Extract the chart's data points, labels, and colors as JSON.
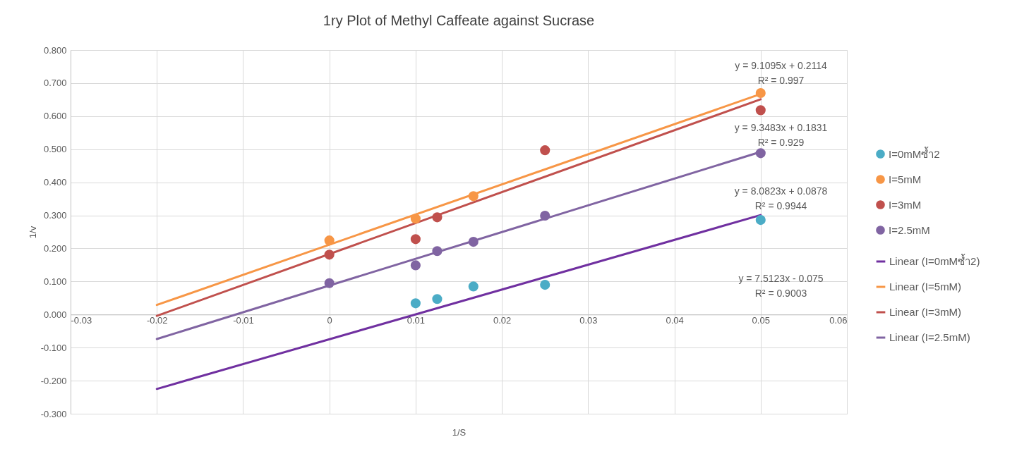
{
  "chart_data": {
    "type": "scatter",
    "title": "1ry Plot of  Methyl Caffeate against Sucrase",
    "xlabel": "1/S",
    "ylabel": "1/v",
    "xlim": [
      -0.03,
      0.06
    ],
    "xticks": [
      -0.03,
      -0.02,
      -0.01,
      0,
      0.01,
      0.02,
      0.03,
      0.04,
      0.05,
      0.06
    ],
    "ylim": [
      -0.3,
      0.8
    ],
    "yticks": [
      {
        "value": -0.3,
        "label": "-0.300"
      },
      {
        "value": -0.2,
        "label": "-0.200"
      },
      {
        "value": -0.1,
        "label": "-0.100"
      },
      {
        "value": 0,
        "label": "0.000"
      },
      {
        "value": 0.1,
        "label": "0.100"
      },
      {
        "value": 0.2,
        "label": "0.200"
      },
      {
        "value": 0.3,
        "label": "0.300"
      },
      {
        "value": 0.4,
        "label": "0.400"
      },
      {
        "value": 0.5,
        "label": "0.500"
      },
      {
        "value": 0.6,
        "label": "0.600"
      },
      {
        "value": 0.7,
        "label": "0.700"
      },
      {
        "value": 0.8,
        "label": "0.800"
      }
    ],
    "grid": true,
    "legend": "right",
    "series": [
      {
        "name": "I=0mMซ้ำ2",
        "color": "#4bacc6",
        "x": [
          0.01,
          0.0125,
          0.0167,
          0.025,
          0.05
        ],
        "values": [
          0.034,
          0.047,
          0.085,
          0.09,
          0.286
        ]
      },
      {
        "name": "I=5mM",
        "color": "#f79646",
        "x": [
          0,
          0.01,
          0.0167,
          0.05
        ],
        "values": [
          0.224,
          0.29,
          0.358,
          0.67
        ]
      },
      {
        "name": "I=3mM",
        "color": "#c0504d",
        "x": [
          0,
          0.01,
          0.0125,
          0.025,
          0.05
        ],
        "values": [
          0.181,
          0.228,
          0.294,
          0.497,
          0.618
        ]
      },
      {
        "name": "I=2.5mM",
        "color": "#8064a2",
        "x": [
          0,
          0.01,
          0.0125,
          0.0167,
          0.025,
          0.05
        ],
        "values": [
          0.095,
          0.149,
          0.192,
          0.22,
          0.299,
          0.488
        ]
      },
      {
        "name": "Linear (I=0mMซ้ำ2)",
        "type": "line",
        "color": "#7030a0",
        "x": [
          -0.02,
          0.05
        ],
        "values": [
          -0.225,
          0.301
        ]
      },
      {
        "name": "Linear (I=5mM)",
        "type": "line",
        "color": "#f79646",
        "x": [
          -0.02,
          0.05
        ],
        "values": [
          0.029,
          0.667
        ]
      },
      {
        "name": "Linear (I=3mM)",
        "type": "line",
        "color": "#c0504d",
        "x": [
          -0.02,
          0.05
        ],
        "values": [
          -0.004,
          0.651
        ]
      },
      {
        "name": "Linear (I=2.5mM)",
        "type": "line",
        "color": "#8064a2",
        "x": [
          -0.02,
          0.05
        ],
        "values": [
          -0.074,
          0.492
        ]
      }
    ],
    "annotations": [
      "y = 9.1095x + 0.2114\nR² = 0.997",
      "y = 9.3483x + 0.1831\nR² = 0.929",
      "y = 8.0823x + 0.0878\nR² = 0.9944",
      "y = 7.5123x - 0.075\nR² = 0.9003"
    ]
  }
}
